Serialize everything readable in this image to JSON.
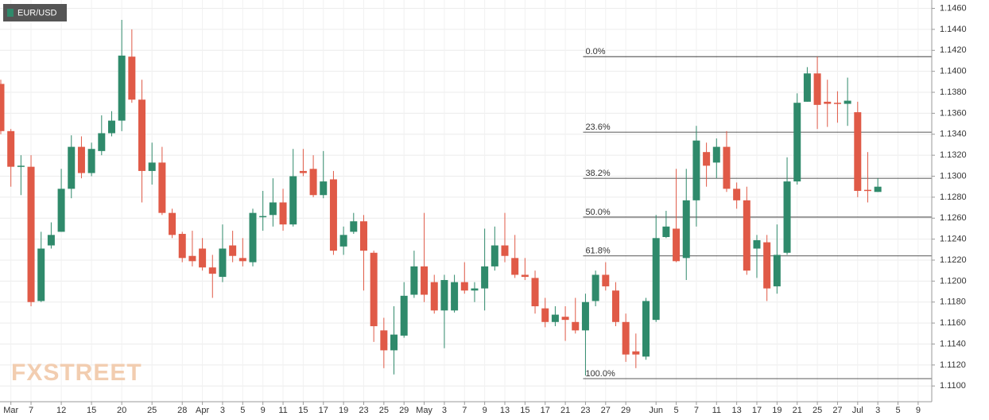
{
  "chart_data": {
    "type": "candlestick",
    "series_name": "EUR/USD",
    "watermark": "FXSTREET",
    "up_color": "#2f8a6b",
    "down_color": "#e05a47",
    "grid": true,
    "categories": [
      null,
      "Mar",
      null,
      "7",
      null,
      null,
      "12",
      null,
      null,
      "15",
      null,
      null,
      "20",
      null,
      null,
      "25",
      null,
      null,
      "28",
      null,
      "Apr",
      null,
      "3",
      null,
      "5",
      null,
      "9",
      null,
      "11",
      null,
      "15",
      null,
      "17",
      null,
      "19",
      null,
      "23",
      null,
      "25",
      null,
      "29",
      null,
      "May",
      null,
      "3",
      null,
      "7",
      null,
      "9",
      null,
      "13",
      null,
      "15",
      null,
      "17",
      null,
      "21",
      null,
      "23",
      null,
      "27",
      null,
      "29",
      null,
      null,
      "Jun",
      null,
      "5",
      null,
      "7",
      null,
      "11",
      null,
      "13",
      null,
      "17",
      null,
      "19",
      null,
      "21",
      null,
      "25",
      null,
      "27",
      null,
      "Jul",
      null,
      "3",
      null,
      "5",
      null,
      "9"
    ],
    "open": [
      1.1388,
      1.1343,
      1.1309,
      1.1309,
      1.1181,
      1.1234,
      1.1247,
      1.1288,
      1.1328,
      1.1303,
      1.1324,
      1.1341,
      1.1353,
      1.1414,
      1.1373,
      1.1305,
      1.1313,
      1.1265,
      1.1245,
      1.1224,
      1.1231,
      1.1213,
      1.1204,
      1.1234,
      1.1222,
      1.1218,
      1.1261,
      1.1263,
      1.1275,
      1.1254,
      1.1305,
      1.1307,
      1.1282,
      1.1297,
      1.1233,
      1.1247,
      1.1257,
      1.1227,
      1.1153,
      1.1134,
      1.1148,
      1.1187,
      1.1214,
      1.1199,
      1.1172,
      1.1172,
      1.1199,
      1.1191,
      1.1193,
      1.1214,
      1.1234,
      1.1222,
      1.1206,
      1.1203,
      1.1174,
      1.1161,
      1.1166,
      1.1161,
      1.1153,
      1.1181,
      1.1206,
      1.1191,
      1.1161,
      1.1133,
      1.1128,
      1.1163,
      1.1242,
      1.125,
      1.1222,
      1.1277,
      1.1323,
      1.1313,
      1.1328,
      1.1288,
      1.1277,
      1.1231,
      1.1237,
      1.1195,
      1.1227,
      1.1295,
      1.1371,
      1.1398,
      1.1371,
      1.137,
      1.1369,
      1.1361,
      1.1287,
      1.1285,
      null,
      null,
      null,
      null
    ],
    "high": [
      1.1392,
      1.1345,
      1.132,
      1.132,
      1.1247,
      1.1256,
      1.1307,
      1.1339,
      1.1338,
      1.1332,
      1.1358,
      1.1362,
      1.1449,
      1.144,
      1.1392,
      1.1332,
      1.1328,
      1.1269,
      1.1247,
      1.1248,
      1.1241,
      1.1225,
      1.1254,
      1.1248,
      1.1241,
      1.1269,
      1.1286,
      1.1298,
      1.1288,
      1.1326,
      1.1326,
      1.132,
      1.1324,
      1.1305,
      1.1252,
      1.1265,
      1.1263,
      1.1229,
      1.1165,
      1.1176,
      1.1199,
      1.1229,
      1.1265,
      1.1206,
      1.1206,
      1.1206,
      1.1218,
      1.1199,
      1.125,
      1.1252,
      1.1265,
      1.1244,
      1.1222,
      1.121,
      1.1184,
      1.1176,
      1.1176,
      1.1184,
      1.1188,
      1.121,
      1.1218,
      1.1199,
      1.1169,
      1.115,
      1.1184,
      1.1263,
      1.1267,
      1.1307,
      1.1307,
      1.1348,
      1.1332,
      1.1336,
      1.1343,
      1.1294,
      1.129,
      1.1244,
      1.1244,
      1.1254,
      1.1318,
      1.1379,
      1.1404,
      1.1414,
      1.1392,
      1.1381,
      1.1394,
      1.1371,
      1.1323,
      1.1298,
      null,
      null,
      null,
      null
    ],
    "low": [
      1.134,
      1.129,
      1.1282,
      1.1176,
      1.118,
      1.1231,
      1.1247,
      1.1279,
      1.1298,
      1.13,
      1.132,
      1.1338,
      1.1343,
      1.137,
      1.1275,
      1.1292,
      1.1263,
      1.1241,
      1.1218,
      1.1214,
      1.121,
      1.1184,
      1.1199,
      1.1218,
      1.1214,
      1.1214,
      1.1248,
      1.1252,
      1.1248,
      1.1252,
      1.13,
      1.128,
      1.1279,
      1.1225,
      1.1225,
      1.1245,
      1.1191,
      1.1142,
      1.1117,
      1.1111,
      1.1146,
      1.1184,
      1.118,
      1.1169,
      1.1136,
      1.117,
      1.1188,
      1.118,
      1.1172,
      1.121,
      1.1218,
      1.1203,
      1.1201,
      1.1169,
      1.1156,
      1.1157,
      1.1143,
      1.115,
      1.111,
      1.1176,
      1.1191,
      1.1157,
      1.1123,
      1.1117,
      1.1125,
      1.1161,
      1.1241,
      1.1218,
      1.1201,
      1.1252,
      1.129,
      1.1298,
      1.1285,
      1.1269,
      1.1206,
      1.1203,
      1.1181,
      1.1188,
      1.1225,
      1.1292,
      1.1371,
      1.1345,
      1.1347,
      1.1351,
      1.1348,
      1.128,
      1.1275,
      1.1285,
      null,
      null,
      null,
      null
    ],
    "close": [
      1.1343,
      1.1309,
      1.131,
      1.118,
      1.1231,
      1.1244,
      1.1288,
      1.1328,
      1.1303,
      1.1326,
      1.1341,
      1.1353,
      1.1415,
      1.1373,
      1.1305,
      1.1313,
      1.1265,
      1.1244,
      1.1222,
      1.1219,
      1.1213,
      1.1207,
      1.1231,
      1.1224,
      1.1219,
      1.1265,
      1.1262,
      1.1275,
      1.1254,
      1.13,
      1.1303,
      1.1282,
      1.1295,
      1.1229,
      1.1244,
      1.1257,
      1.1229,
      1.1157,
      1.1134,
      1.1149,
      1.1186,
      1.1214,
      1.1187,
      1.1172,
      1.1201,
      1.1199,
      1.1191,
      1.1193,
      1.1214,
      1.1234,
      1.1224,
      1.1206,
      1.1204,
      1.1176,
      1.1161,
      1.1168,
      1.1163,
      1.1153,
      1.118,
      1.1206,
      1.1195,
      1.1161,
      1.113,
      1.113,
      1.1181,
      1.1241,
      1.1252,
      1.1219,
      1.1277,
      1.1334,
      1.131,
      1.1328,
      1.1288,
      1.1277,
      1.121,
      1.1239,
      1.1193,
      1.1225,
      1.1295,
      1.137,
      1.1398,
      1.1368,
      1.1369,
      1.1369,
      1.1372,
      1.1286,
      1.1286,
      1.129,
      null,
      null,
      null,
      null
    ],
    "levels": [
      {
        "label": "0.0%",
        "price": 1.1414
      },
      {
        "label": "23.6%",
        "price": 1.1342
      },
      {
        "label": "38.2%",
        "price": 1.1298
      },
      {
        "label": "50.0%",
        "price": 1.1261
      },
      {
        "label": "61.8%",
        "price": 1.1224
      },
      {
        "label": "100.0%",
        "price": 1.1107
      }
    ],
    "ylim": [
      1.1085,
      1.1468
    ],
    "yticks": [
      {
        "value": 1.11,
        "label": "1.1100"
      },
      {
        "value": 1.112,
        "label": "1.1120"
      },
      {
        "value": 1.114,
        "label": "1.1140"
      },
      {
        "value": 1.116,
        "label": "1.1160"
      },
      {
        "value": 1.118,
        "label": "1.1180"
      },
      {
        "value": 1.12,
        "label": "1.1200"
      },
      {
        "value": 1.122,
        "label": "1.1220"
      },
      {
        "value": 1.124,
        "label": "1.1240"
      },
      {
        "value": 1.126,
        "label": "1.1260"
      },
      {
        "value": 1.128,
        "label": "1.1280"
      },
      {
        "value": 1.13,
        "label": "1.1300"
      },
      {
        "value": 1.132,
        "label": "1.1320"
      },
      {
        "value": 1.134,
        "label": "1.1340"
      },
      {
        "value": 1.136,
        "label": "1.1360"
      },
      {
        "value": 1.138,
        "label": "1.1380"
      },
      {
        "value": 1.14,
        "label": "1.1400"
      },
      {
        "value": 1.142,
        "label": "1.1420"
      },
      {
        "value": 1.144,
        "label": "1.1440"
      },
      {
        "value": 1.146,
        "label": "1.1460"
      }
    ]
  }
}
